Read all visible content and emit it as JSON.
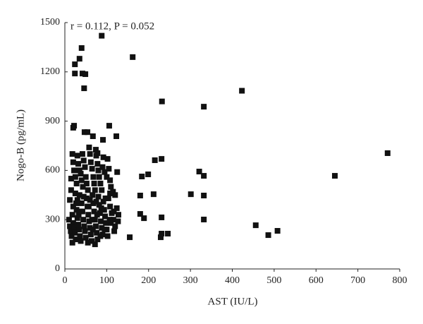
{
  "chart_data": {
    "type": "scatter",
    "annotation": "r = 0.112, P = 0.052",
    "xlabel": "AST (IU/L)",
    "ylabel": "Nogo-B (pg/mL)",
    "color": "#111111",
    "xlim": [
      0,
      800
    ],
    "xticks": [
      0,
      100,
      200,
      300,
      400,
      500,
      600,
      700,
      800
    ],
    "ylim": [
      0,
      1500
    ],
    "yticks": [
      0,
      300,
      600,
      900,
      1200,
      1500
    ],
    "x": [
      88,
      162,
      423,
      232,
      332,
      771,
      645,
      456,
      486,
      508,
      155,
      321,
      332,
      301,
      332,
      332,
      231,
      215,
      199,
      184,
      180,
      212,
      180,
      189,
      231,
      231,
      229,
      246,
      40,
      35,
      24,
      24,
      42,
      49,
      46,
      106,
      123,
      22,
      20,
      47,
      54,
      67,
      74,
      78,
      91,
      15,
      18,
      20,
      22,
      25,
      28,
      30,
      32,
      35,
      38,
      40,
      42,
      45,
      48,
      50,
      52,
      55,
      58,
      60,
      62,
      65,
      68,
      70,
      72,
      75,
      78,
      80,
      82,
      85,
      88,
      90,
      95,
      100,
      105,
      108,
      110,
      115,
      120,
      125,
      102,
      92,
      10,
      12,
      14,
      16,
      18,
      20,
      22,
      24,
      26,
      28,
      30,
      32,
      34,
      36,
      38,
      40,
      42,
      44,
      46,
      48,
      50,
      52,
      54,
      56,
      58,
      60,
      62,
      64,
      66,
      68,
      70,
      72,
      74,
      76,
      78,
      80,
      82,
      84,
      86,
      88,
      90,
      92,
      94,
      96,
      98,
      100,
      104,
      108,
      112,
      116,
      120,
      124,
      128,
      118,
      110,
      102,
      30,
      20,
      12,
      25,
      35,
      45,
      60,
      75,
      18,
      72,
      55,
      85,
      95,
      108,
      65,
      33,
      43,
      15,
      27,
      37,
      57,
      67,
      77,
      87,
      97,
      107,
      117,
      127
    ],
    "values": [
      1420,
      1290,
      1085,
      1020,
      988,
      705,
      567,
      266,
      206,
      232,
      193,
      593,
      567,
      455,
      447,
      301,
      670,
      662,
      576,
      563,
      447,
      455,
      335,
      309,
      314,
      215,
      193,
      215,
      1345,
      1280,
      1246,
      1190,
      1190,
      1186,
      1100,
      872,
      808,
      872,
      860,
      833,
      833,
      808,
      726,
      705,
      786,
      480,
      700,
      650,
      600,
      560,
      520,
      690,
      640,
      600,
      580,
      540,
      700,
      660,
      620,
      560,
      520,
      480,
      740,
      700,
      650,
      610,
      560,
      520,
      480,
      690,
      640,
      600,
      560,
      520,
      480,
      620,
      590,
      560,
      610,
      540,
      500,
      470,
      450,
      590,
      670,
      680,
      300,
      260,
      230,
      200,
      330,
      280,
      250,
      220,
      180,
      360,
      310,
      270,
      240,
      200,
      170,
      400,
      350,
      300,
      260,
      230,
      190,
      430,
      380,
      330,
      290,
      250,
      210,
      170,
      450,
      400,
      350,
      300,
      260,
      220,
      180,
      440,
      390,
      340,
      290,
      250,
      210,
      410,
      360,
      320,
      280,
      240,
      430,
      380,
      340,
      300,
      260,
      370,
      330,
      230,
      280,
      200,
      420,
      380,
      420,
      460,
      450,
      440,
      420,
      410,
      160,
      150,
      160,
      200,
      240,
      460,
      300,
      330,
      500,
      550,
      400,
      350,
      380,
      240,
      330,
      370,
      430,
      300,
      350,
      290
    ]
  }
}
